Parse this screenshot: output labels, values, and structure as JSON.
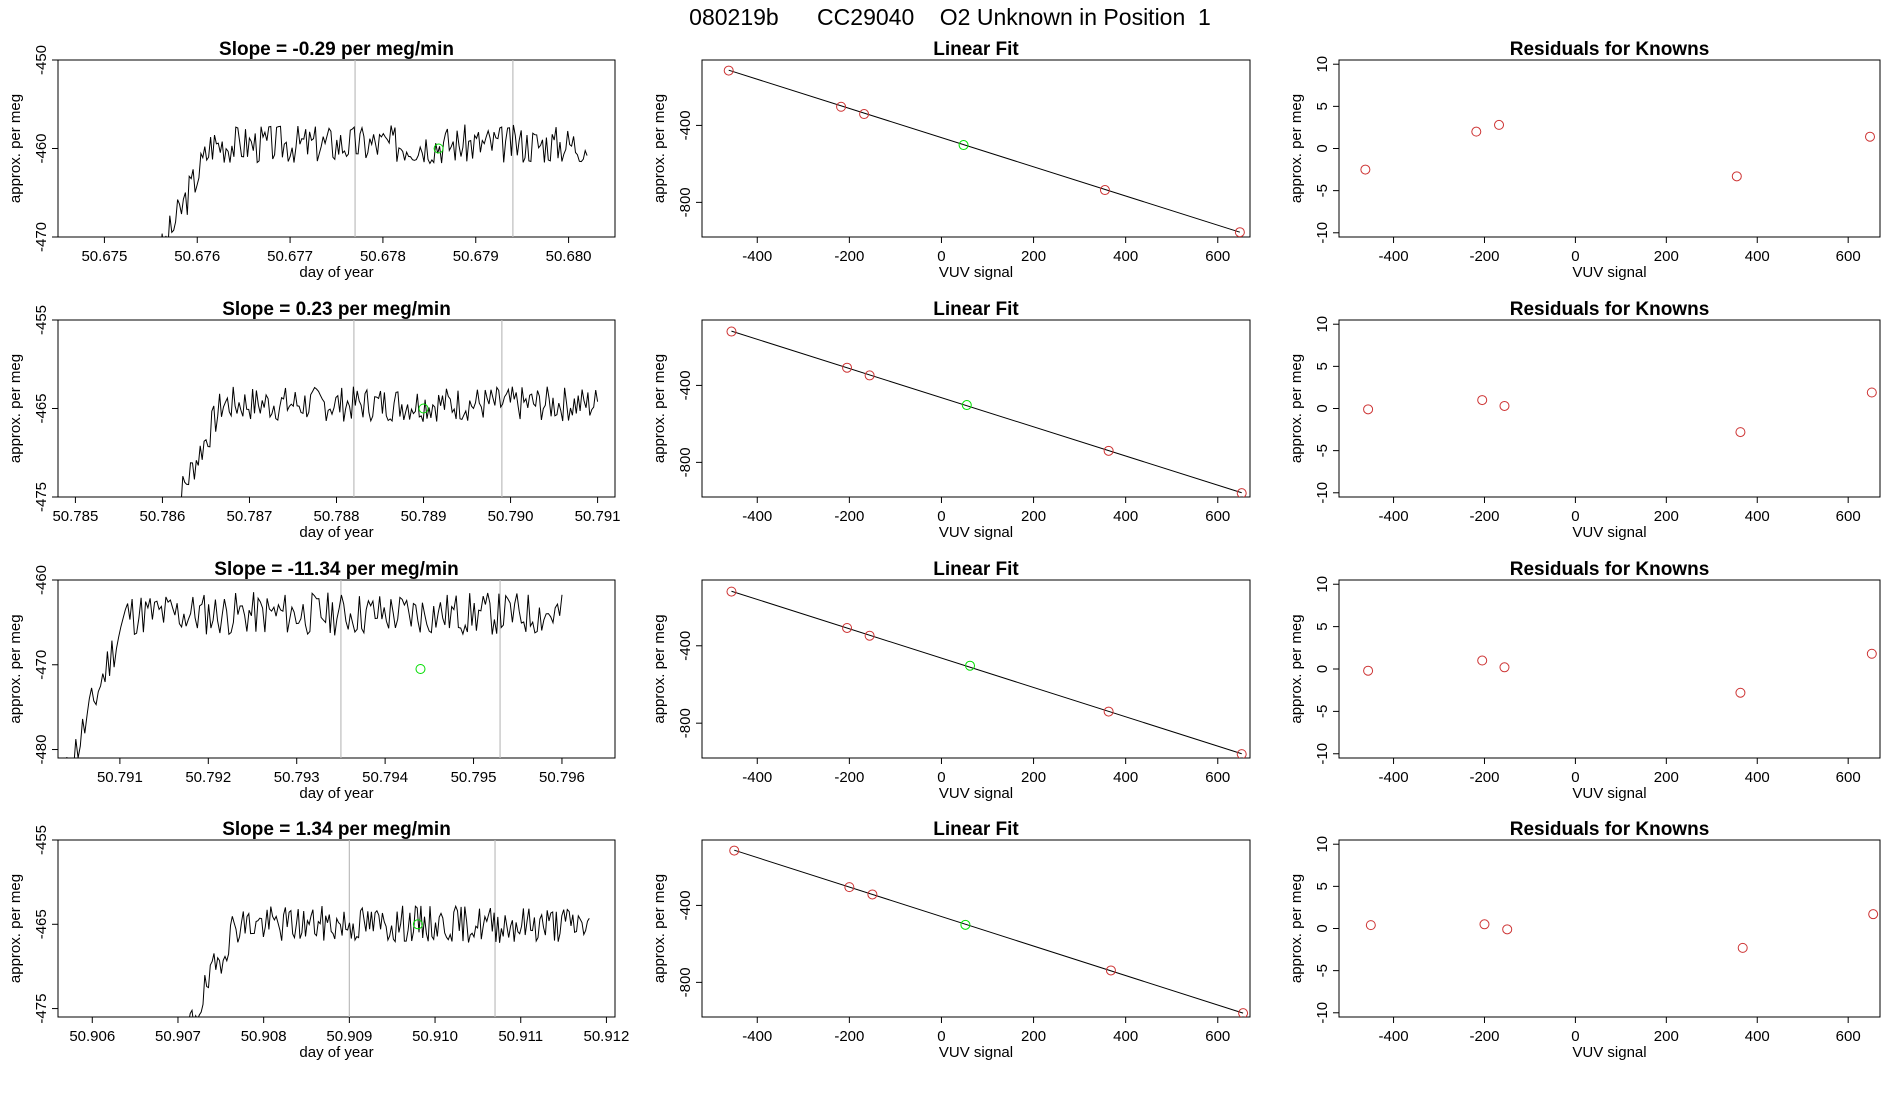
{
  "figure_title": "080219b      CC29040    O2 Unknown in Position  1",
  "colors": {
    "trace": "#000000",
    "known": "#cd3333",
    "unknown": "#00dd00",
    "vline": "#bdbdbd"
  },
  "chart_data": [
    {
      "type": "line",
      "role": "timeseries",
      "title": "Slope =  -0.29  per meg/min",
      "xlabel": "day of year",
      "ylabel": "approx. per meg",
      "xlim": [
        50.6745,
        50.6805
      ],
      "ylim": [
        -470,
        -450
      ],
      "xticks": [
        "50.675",
        "50.676",
        "50.677",
        "50.678",
        "50.679",
        "50.680"
      ],
      "xtick_values": [
        50.675,
        50.676,
        50.677,
        50.678,
        50.679,
        50.68
      ],
      "yticks": [
        "-470",
        "-460",
        "-450"
      ],
      "ytick_values": [
        -470,
        -460,
        -450
      ],
      "vlines": [
        50.6777,
        50.6794
      ],
      "trace_start": 50.6756,
      "trace_end": 50.6802,
      "trace_level": -459.5,
      "trace_noise": 2.2,
      "trace_seed": 3,
      "unknown_point": {
        "x": 50.6786,
        "y": -460.0
      }
    },
    {
      "type": "scatter",
      "role": "linear_fit",
      "title": "Linear Fit",
      "xlabel": "VUV signal",
      "ylabel": "approx. per meg",
      "xlim": [
        -520,
        670
      ],
      "ylim": [
        -980,
        -60
      ],
      "xticks": [
        "-400",
        "-200",
        "0",
        "200",
        "400",
        "600"
      ],
      "xtick_values": [
        -400,
        -200,
        0,
        200,
        400,
        600
      ],
      "yticks": [
        "-800",
        "-400"
      ],
      "ytick_values": [
        -800,
        -400
      ],
      "fit_line": {
        "x": [
          -462,
          648
        ],
        "y": [
          -113,
          -955
        ]
      },
      "knowns": [
        {
          "x": -462,
          "y": -115
        },
        {
          "x": -218,
          "y": -303
        },
        {
          "x": -168,
          "y": -341
        },
        {
          "x": 355,
          "y": -736
        },
        {
          "x": 648,
          "y": -955
        }
      ],
      "unknown": {
        "x": 48,
        "y": -502
      }
    },
    {
      "type": "scatter",
      "role": "residuals",
      "title": "Residuals for Knowns",
      "xlabel": "VUV signal",
      "ylabel": "approx. per meg",
      "xlim": [
        -520,
        670
      ],
      "ylim": [
        -10.5,
        10.5
      ],
      "xticks": [
        "-400",
        "-200",
        "0",
        "200",
        "400",
        "600"
      ],
      "xtick_values": [
        -400,
        -200,
        0,
        200,
        400,
        600
      ],
      "yticks": [
        "-10",
        "-5",
        "0",
        "5",
        "10"
      ],
      "ytick_values": [
        -10,
        -5,
        0,
        5,
        10
      ],
      "points": [
        {
          "x": -462,
          "y": -2.5
        },
        {
          "x": -218,
          "y": 2.0
        },
        {
          "x": -168,
          "y": 2.8
        },
        {
          "x": 355,
          "y": -3.3
        },
        {
          "x": 648,
          "y": 1.4
        }
      ]
    },
    {
      "type": "line",
      "role": "timeseries",
      "title": "Slope =  0.23  per meg/min",
      "xlabel": "day of year",
      "ylabel": "approx. per meg",
      "xlim": [
        50.7848,
        50.7912
      ],
      "ylim": [
        -475,
        -455
      ],
      "xticks": [
        "50.785",
        "50.786",
        "50.787",
        "50.788",
        "50.789",
        "50.790",
        "50.791"
      ],
      "xtick_values": [
        50.785,
        50.786,
        50.787,
        50.788,
        50.789,
        50.79,
        50.791
      ],
      "yticks": [
        "-475",
        "-465",
        "-455"
      ],
      "ytick_values": [
        -475,
        -465,
        -455
      ],
      "vlines": [
        50.7882,
        50.7899
      ],
      "trace_start": 50.7861,
      "trace_end": 50.791,
      "trace_level": -464.5,
      "trace_noise": 2.0,
      "trace_seed": 7,
      "unknown_point": {
        "x": 50.789,
        "y": -465.0
      }
    },
    {
      "type": "scatter",
      "role": "linear_fit",
      "title": "Linear Fit",
      "xlabel": "VUV signal",
      "ylabel": "approx. per meg",
      "xlim": [
        -520,
        670
      ],
      "ylim": [
        -980,
        -60
      ],
      "xticks": [
        "-400",
        "-200",
        "0",
        "200",
        "400",
        "600"
      ],
      "xtick_values": [
        -400,
        -200,
        0,
        200,
        400,
        600
      ],
      "yticks": [
        "-800",
        "-400"
      ],
      "ytick_values": [
        -800,
        -400
      ],
      "fit_line": {
        "x": [
          -456,
          652
        ],
        "y": [
          -118,
          -958
        ]
      },
      "knowns": [
        {
          "x": -456,
          "y": -120
        },
        {
          "x": -205,
          "y": -308
        },
        {
          "x": -156,
          "y": -348
        },
        {
          "x": 363,
          "y": -740
        },
        {
          "x": 652,
          "y": -960
        }
      ],
      "unknown": {
        "x": 55,
        "y": -502
      }
    },
    {
      "type": "scatter",
      "role": "residuals",
      "title": "Residuals for Knowns",
      "xlabel": "VUV signal",
      "ylabel": "approx. per meg",
      "xlim": [
        -520,
        670
      ],
      "ylim": [
        -10.5,
        10.5
      ],
      "xticks": [
        "-400",
        "-200",
        "0",
        "200",
        "400",
        "600"
      ],
      "xtick_values": [
        -400,
        -200,
        0,
        200,
        400,
        600
      ],
      "yticks": [
        "-10",
        "-5",
        "0",
        "5",
        "10"
      ],
      "ytick_values": [
        -10,
        -5,
        0,
        5,
        10
      ],
      "points": [
        {
          "x": -456,
          "y": -0.1
        },
        {
          "x": -205,
          "y": 1.0
        },
        {
          "x": -156,
          "y": 0.3
        },
        {
          "x": 363,
          "y": -2.8
        },
        {
          "x": 652,
          "y": 1.9
        }
      ]
    },
    {
      "type": "line",
      "role": "timeseries",
      "title": "Slope =  -11.34  per meg/min",
      "xlabel": "day of year",
      "ylabel": "approx. per meg",
      "xlim": [
        50.7903,
        50.7966
      ],
      "ylim": [
        -481,
        -460
      ],
      "xticks": [
        "50.791",
        "50.792",
        "50.793",
        "50.794",
        "50.795",
        "50.796"
      ],
      "xtick_values": [
        50.791,
        50.792,
        50.793,
        50.794,
        50.795,
        50.796
      ],
      "yticks": [
        "-480",
        "-470",
        "-460"
      ],
      "ytick_values": [
        -480,
        -470,
        -460
      ],
      "vlines": [
        50.7935,
        50.7953
      ],
      "trace_start": 50.7904,
      "trace_end": 50.796,
      "trace_level": -464.0,
      "trace_noise": 2.6,
      "trace_seed": 11,
      "unknown_point": {
        "x": 50.7944,
        "y": -470.5
      }
    },
    {
      "type": "scatter",
      "role": "linear_fit",
      "title": "Linear Fit",
      "xlabel": "VUV signal",
      "ylabel": "approx. per meg",
      "xlim": [
        -520,
        670
      ],
      "ylim": [
        -980,
        -60
      ],
      "xticks": [
        "-400",
        "-200",
        "0",
        "200",
        "400",
        "600"
      ],
      "xtick_values": [
        -400,
        -200,
        0,
        200,
        400,
        600
      ],
      "yticks": [
        "-800",
        "-400"
      ],
      "ytick_values": [
        -800,
        -400
      ],
      "fit_line": {
        "x": [
          -456,
          652
        ],
        "y": [
          -118,
          -958
        ]
      },
      "knowns": [
        {
          "x": -456,
          "y": -120
        },
        {
          "x": -205,
          "y": -308
        },
        {
          "x": -156,
          "y": -348
        },
        {
          "x": 363,
          "y": -740
        },
        {
          "x": 652,
          "y": -960
        }
      ],
      "unknown": {
        "x": 62,
        "y": -503
      }
    },
    {
      "type": "scatter",
      "role": "residuals",
      "title": "Residuals for Knowns",
      "xlabel": "VUV signal",
      "ylabel": "approx. per meg",
      "xlim": [
        -520,
        670
      ],
      "ylim": [
        -10.5,
        10.5
      ],
      "xticks": [
        "-400",
        "-200",
        "0",
        "200",
        "400",
        "600"
      ],
      "xtick_values": [
        -400,
        -200,
        0,
        200,
        400,
        600
      ],
      "yticks": [
        "-10",
        "-5",
        "0",
        "5",
        "10"
      ],
      "ytick_values": [
        -10,
        -5,
        0,
        5,
        10
      ],
      "points": [
        {
          "x": -456,
          "y": -0.2
        },
        {
          "x": -205,
          "y": 1.0
        },
        {
          "x": -156,
          "y": 0.2
        },
        {
          "x": 363,
          "y": -2.8
        },
        {
          "x": 652,
          "y": 1.8
        }
      ]
    },
    {
      "type": "line",
      "role": "timeseries",
      "title": "Slope =  1.34  per meg/min",
      "xlabel": "day of year",
      "ylabel": "approx. per meg",
      "xlim": [
        50.9056,
        50.9121
      ],
      "ylim": [
        -476,
        -455
      ],
      "xticks": [
        "50.906",
        "50.907",
        "50.908",
        "50.909",
        "50.910",
        "50.911",
        "50.912"
      ],
      "xtick_values": [
        50.906,
        50.907,
        50.908,
        50.909,
        50.91,
        50.911,
        50.912
      ],
      "yticks": [
        "-475",
        "-465",
        "-455"
      ],
      "ytick_values": [
        -475,
        -465,
        -455
      ],
      "vlines": [
        50.909,
        50.9107
      ],
      "trace_start": 50.9071,
      "trace_end": 50.9118,
      "trace_level": -465.0,
      "trace_noise": 2.2,
      "trace_seed": 19,
      "unknown_point": {
        "x": 50.9098,
        "y": -465.0
      }
    },
    {
      "type": "scatter",
      "role": "linear_fit",
      "title": "Linear Fit",
      "xlabel": "VUV signal",
      "ylabel": "approx. per meg",
      "xlim": [
        -520,
        670
      ],
      "ylim": [
        -980,
        -60
      ],
      "xticks": [
        "-400",
        "-200",
        "0",
        "200",
        "400",
        "600"
      ],
      "xtick_values": [
        -400,
        -200,
        0,
        200,
        400,
        600
      ],
      "yticks": [
        "-800",
        "-400"
      ],
      "ytick_values": [
        -800,
        -400
      ],
      "fit_line": {
        "x": [
          -450,
          655
        ],
        "y": [
          -113,
          -960
        ]
      },
      "knowns": [
        {
          "x": -450,
          "y": -115
        },
        {
          "x": -200,
          "y": -305
        },
        {
          "x": -150,
          "y": -343
        },
        {
          "x": 368,
          "y": -738
        },
        {
          "x": 655,
          "y": -960
        }
      ],
      "unknown": {
        "x": 52,
        "y": -501
      }
    },
    {
      "type": "scatter",
      "role": "residuals",
      "title": "Residuals for Knowns",
      "xlabel": "VUV signal",
      "ylabel": "approx. per meg",
      "xlim": [
        -520,
        670
      ],
      "ylim": [
        -10.5,
        10.5
      ],
      "xticks": [
        "-400",
        "-200",
        "0",
        "200",
        "400",
        "600"
      ],
      "xtick_values": [
        -400,
        -200,
        0,
        200,
        400,
        600
      ],
      "yticks": [
        "-10",
        "-5",
        "0",
        "5",
        "10"
      ],
      "ytick_values": [
        -10,
        -5,
        0,
        5,
        10
      ],
      "points": [
        {
          "x": -450,
          "y": 0.4
        },
        {
          "x": -200,
          "y": 0.5
        },
        {
          "x": -150,
          "y": -0.1
        },
        {
          "x": 368,
          "y": -2.3
        },
        {
          "x": 655,
          "y": 1.7
        }
      ]
    }
  ]
}
